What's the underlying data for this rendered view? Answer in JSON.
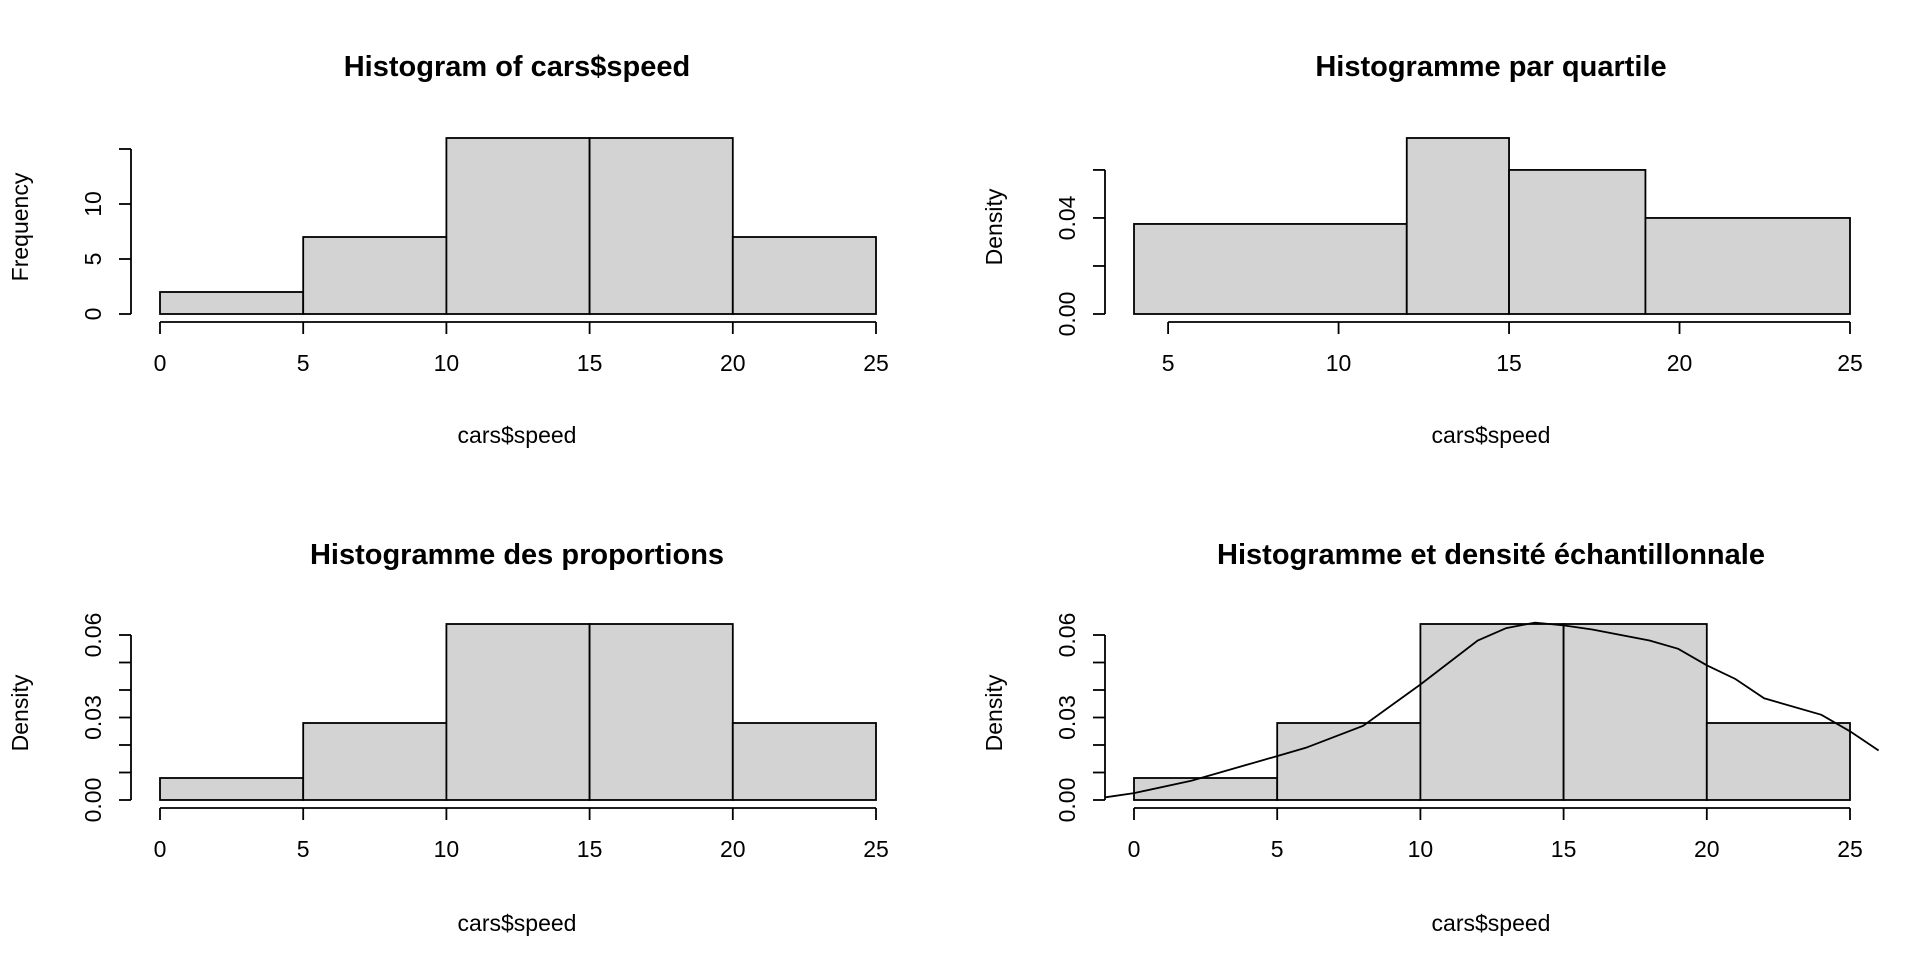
{
  "chart_data": [
    {
      "type": "bar",
      "title": "Histogram of cars$speed",
      "xlabel": "cars$speed",
      "ylabel": "Frequency",
      "breaks": [
        0,
        5,
        10,
        15,
        20,
        25
      ],
      "values": [
        2,
        7,
        16,
        16,
        7
      ],
      "xlim": [
        0,
        25
      ],
      "ylim": [
        0,
        16
      ],
      "xticks": [
        0,
        5,
        10,
        15,
        20,
        25
      ],
      "yticks": [
        0,
        5,
        10,
        15
      ],
      "ytick_labels": [
        "0",
        "5",
        "10",
        ""
      ],
      "grid": false
    },
    {
      "type": "bar",
      "title": "Histogramme par quartile",
      "xlabel": "cars$speed",
      "ylabel": "Density",
      "breaks": [
        4,
        12,
        15,
        19,
        25
      ],
      "values": [
        0.0375,
        0.0733,
        0.06,
        0.04
      ],
      "xlim": [
        4,
        25
      ],
      "ylim": [
        0,
        0.0733
      ],
      "xticks": [
        5,
        10,
        15,
        20,
        25
      ],
      "yticks": [
        0,
        0.02,
        0.04,
        0.06
      ],
      "ytick_labels": [
        "0.00",
        "",
        "0.04",
        ""
      ],
      "grid": false
    },
    {
      "type": "bar",
      "title": "Histogramme des proportions",
      "xlabel": "cars$speed",
      "ylabel": "Density",
      "breaks": [
        0,
        5,
        10,
        15,
        20,
        25
      ],
      "values": [
        0.008,
        0.028,
        0.064,
        0.064,
        0.028
      ],
      "xlim": [
        0,
        25
      ],
      "ylim": [
        0,
        0.064
      ],
      "xticks": [
        0,
        5,
        10,
        15,
        20,
        25
      ],
      "yticks": [
        0,
        0.01,
        0.02,
        0.03,
        0.04,
        0.05,
        0.06
      ],
      "ytick_labels": [
        "0.00",
        "",
        "",
        "0.03",
        "",
        "",
        "0.06"
      ],
      "grid": false
    },
    {
      "type": "bar",
      "title": "Histogramme et densité échantillonnale",
      "xlabel": "cars$speed",
      "ylabel": "Density",
      "breaks": [
        0,
        5,
        10,
        15,
        20,
        25
      ],
      "values": [
        0.008,
        0.028,
        0.064,
        0.064,
        0.028
      ],
      "xlim": [
        0,
        25
      ],
      "ylim": [
        0,
        0.064
      ],
      "xticks": [
        0,
        5,
        10,
        15,
        20,
        25
      ],
      "yticks": [
        0,
        0.01,
        0.02,
        0.03,
        0.04,
        0.05,
        0.06
      ],
      "ytick_labels": [
        "0.00",
        "",
        "",
        "0.03",
        "",
        "",
        "0.06"
      ],
      "grid": false,
      "density_curve": {
        "x": [
          -1,
          0,
          2,
          4,
          6,
          8,
          10,
          12,
          13,
          14,
          15,
          16,
          18,
          19,
          20,
          21,
          22,
          24,
          25,
          26
        ],
        "y": [
          0.001,
          0.0025,
          0.007,
          0.013,
          0.019,
          0.027,
          0.042,
          0.058,
          0.0625,
          0.0645,
          0.0635,
          0.062,
          0.058,
          0.055,
          0.049,
          0.044,
          0.037,
          0.031,
          0.025,
          0.018
        ]
      }
    }
  ]
}
